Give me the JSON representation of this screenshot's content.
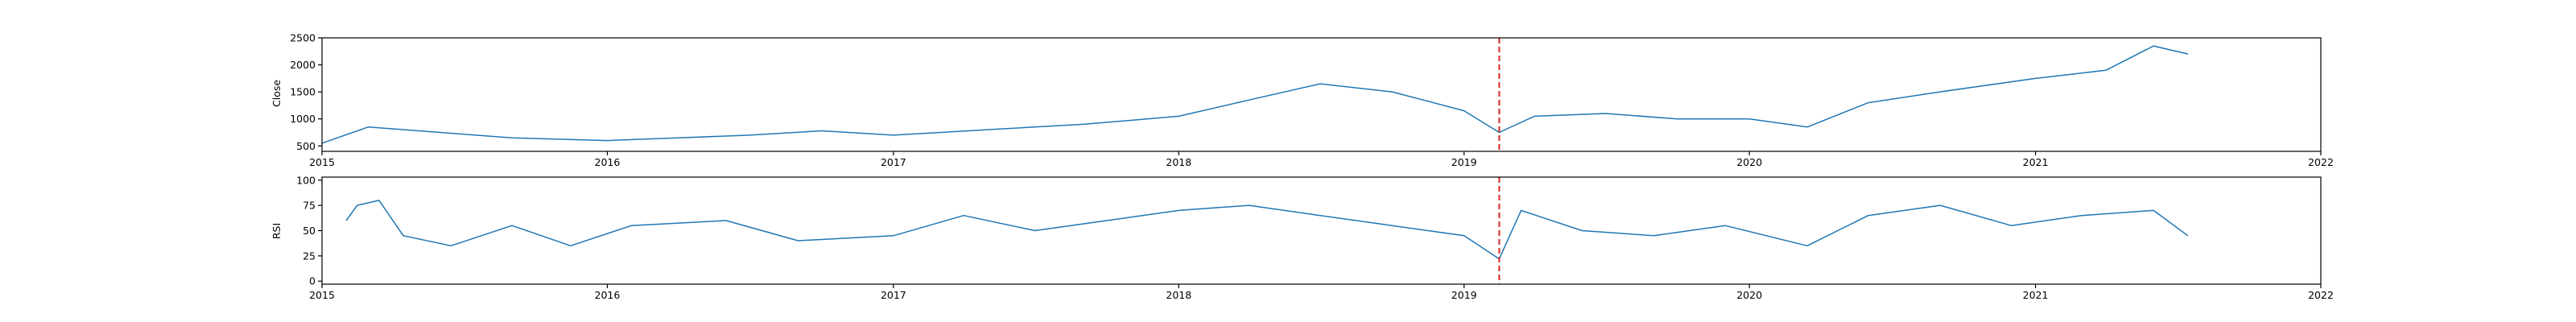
{
  "colors": {
    "line": "#1f77b4",
    "marker": "#d62728",
    "axis": "#000000",
    "background": "#ffffff"
  },
  "chart_data": [
    {
      "type": "line",
      "ylabel": "Close",
      "xlim": [
        "2015-01-01",
        "2022-01-01"
      ],
      "ylim": [
        400,
        2500
      ],
      "yticks": [
        500,
        1000,
        1500,
        2000,
        2500
      ],
      "xtick_labels": [
        "2015",
        "2016",
        "2017",
        "2018",
        "2019",
        "2020",
        "2021",
        "2022"
      ],
      "grid": false,
      "vertical_marker": "2019-02-15",
      "series": [
        {
          "x": [
            "2015-01-01",
            "2015-03-01",
            "2015-06-01",
            "2015-09-01",
            "2016-01-01",
            "2016-04-01",
            "2016-07-01",
            "2016-10-01",
            "2017-01-01",
            "2017-05-01",
            "2017-09-01",
            "2018-01-01",
            "2018-04-01",
            "2018-07-01",
            "2018-10-01",
            "2019-01-01",
            "2019-02-15",
            "2019-04-01",
            "2019-07-01",
            "2019-10-01",
            "2020-01-01",
            "2020-03-15",
            "2020-06-01",
            "2020-09-01",
            "2021-01-01",
            "2021-04-01",
            "2021-06-01",
            "2021-07-15"
          ],
          "y": [
            550,
            850,
            750,
            650,
            600,
            650,
            700,
            780,
            700,
            800,
            900,
            1050,
            1350,
            1650,
            1500,
            1150,
            750,
            1050,
            1100,
            1000,
            1000,
            850,
            1300,
            1500,
            1750,
            1900,
            2350,
            2200
          ]
        }
      ]
    },
    {
      "type": "line",
      "ylabel": "RSI",
      "xlim": [
        "2015-01-01",
        "2022-01-01"
      ],
      "ylim": [
        -3,
        103
      ],
      "yticks": [
        0,
        25,
        50,
        75,
        100
      ],
      "xtick_labels": [
        "2015",
        "2016",
        "2017",
        "2018",
        "2019",
        "2020",
        "2021",
        "2022"
      ],
      "grid": false,
      "vertical_marker": "2019-02-15",
      "series": [
        {
          "x": [
            "2015-02-01",
            "2015-02-15",
            "2015-03-15",
            "2015-04-15",
            "2015-06-15",
            "2015-09-01",
            "2015-11-15",
            "2016-02-01",
            "2016-06-01",
            "2016-09-01",
            "2017-01-01",
            "2017-04-01",
            "2017-07-01",
            "2017-10-01",
            "2018-01-01",
            "2018-04-01",
            "2018-07-01",
            "2018-10-01",
            "2019-01-01",
            "2019-02-15",
            "2019-03-15",
            "2019-06-01",
            "2019-09-01",
            "2019-12-01",
            "2020-03-15",
            "2020-06-01",
            "2020-09-01",
            "2020-12-01",
            "2021-03-01",
            "2021-06-01",
            "2021-07-15"
          ],
          "y": [
            60,
            75,
            80,
            45,
            35,
            55,
            35,
            55,
            60,
            40,
            45,
            65,
            50,
            60,
            70,
            75,
            65,
            55,
            45,
            22,
            70,
            50,
            45,
            55,
            35,
            65,
            75,
            55,
            65,
            70,
            45
          ]
        }
      ]
    }
  ]
}
